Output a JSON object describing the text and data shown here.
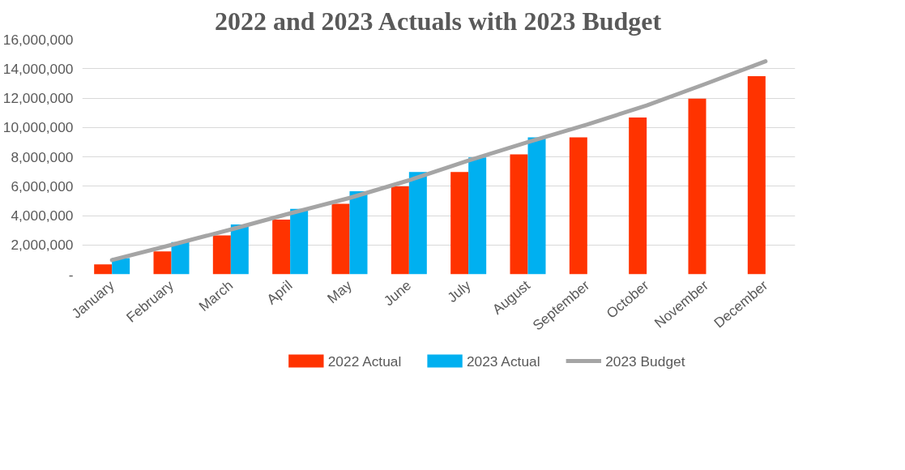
{
  "chart_data": {
    "type": "bar",
    "title": "2022 and 2023 Actuals with 2023 Budget",
    "categories": [
      "January",
      "February",
      "March",
      "April",
      "May",
      "June",
      "July",
      "August",
      "September",
      "October",
      "November",
      "December"
    ],
    "series": [
      {
        "name": "2022 Actual",
        "color": "#ff3300",
        "values": [
          680000,
          1560000,
          2650000,
          3720000,
          4800000,
          5990000,
          6960000,
          8170000,
          9330000,
          10670000,
          11960000,
          13490000
        ]
      },
      {
        "name": "2023 Actual",
        "color": "#00b0f0",
        "values": [
          1100000,
          2200000,
          3400000,
          4460000,
          5650000,
          6960000,
          7960000,
          9330000,
          null,
          null,
          null,
          null
        ]
      },
      {
        "name": "2023 Budget",
        "type": "line",
        "color": "#a5a5a5",
        "values": [
          970000,
          2000000,
          3050000,
          4150000,
          5200000,
          6400000,
          7750000,
          9000000,
          10200000,
          11500000,
          12980000,
          14500000
        ]
      }
    ],
    "ylim": [
      0,
      16000000
    ],
    "yticks": [
      {
        "value": 0,
        "label": "-"
      },
      {
        "value": 2000000,
        "label": "2,000,000"
      },
      {
        "value": 4000000,
        "label": "4,000,000"
      },
      {
        "value": 6000000,
        "label": "6,000,000"
      },
      {
        "value": 8000000,
        "label": "8,000,000"
      },
      {
        "value": 10000000,
        "label": "10,000,000"
      },
      {
        "value": 12000000,
        "label": "12,000,000"
      },
      {
        "value": 14000000,
        "label": "14,000,000"
      },
      {
        "value": 16000000,
        "label": "16,000,000"
      }
    ],
    "grid": "y",
    "legend": "bottom"
  }
}
